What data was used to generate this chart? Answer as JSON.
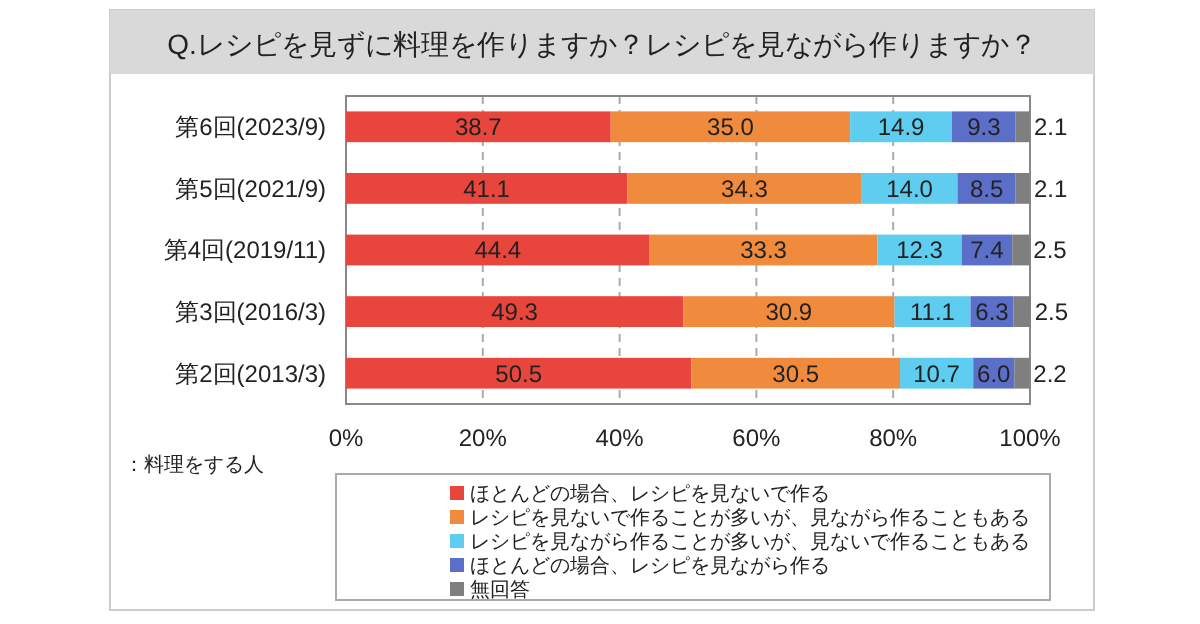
{
  "chart_data": {
    "type": "bar",
    "orientation": "horizontal",
    "stacked": true,
    "title": "Q.レシピを見ずに料理を作りますか？レシピを見ながら作りますか？",
    "categories": [
      "第6回(2023/9)",
      "第5回(2021/9)",
      "第4回(2019/11)",
      "第3回(2016/3)",
      "第2回(2013/3)"
    ],
    "series": [
      {
        "name": "ほとんどの場合、レシピを見ないで作る",
        "color": "#e8453c",
        "values": [
          38.7,
          41.1,
          44.4,
          49.3,
          50.5
        ],
        "value_labels": [
          "38.7",
          "41.1",
          "44.4",
          "49.3",
          "50.5"
        ]
      },
      {
        "name": "レシピを見ないで作ることが多いが、見ながら作ることもある",
        "color": "#f08a3c",
        "values": [
          35.0,
          34.3,
          33.3,
          30.9,
          30.5
        ],
        "value_labels": [
          "35.0",
          "34.3",
          "33.3",
          "30.9",
          "30.5"
        ]
      },
      {
        "name": "レシピを見ながら作ることが多いが、見ないで作ることもある",
        "color": "#5fcdf0",
        "values": [
          14.9,
          14.0,
          12.3,
          11.1,
          10.7
        ],
        "value_labels": [
          "14.9",
          "14.0",
          "12.3",
          "11.1",
          "10.7"
        ]
      },
      {
        "name": "ほとんどの場合、レシピを見ながら作る",
        "color": "#5b6fc8",
        "values": [
          9.3,
          8.5,
          7.4,
          6.3,
          6.0
        ],
        "value_labels": [
          "9.3",
          "8.5",
          "7.4",
          "6.3",
          "6.0"
        ]
      },
      {
        "name": "無回答",
        "color": "#7f7f7f",
        "values": [
          2.1,
          2.1,
          2.5,
          2.5,
          2.2
        ],
        "value_labels": [
          "2.1",
          "2.1",
          "2.5",
          "2.5",
          "2.2"
        ]
      }
    ],
    "xlim": [
      0,
      100
    ],
    "xticks": [
      {
        "value": 0,
        "label": "0%"
      },
      {
        "value": 20,
        "label": "20%"
      },
      {
        "value": 40,
        "label": "40%"
      },
      {
        "value": 60,
        "label": "60%"
      },
      {
        "value": 80,
        "label": "80%"
      },
      {
        "value": 100,
        "label": "100%"
      }
    ],
    "grid": "x",
    "legend": "bottom",
    "annotations": [
      "：料理をする人"
    ]
  }
}
